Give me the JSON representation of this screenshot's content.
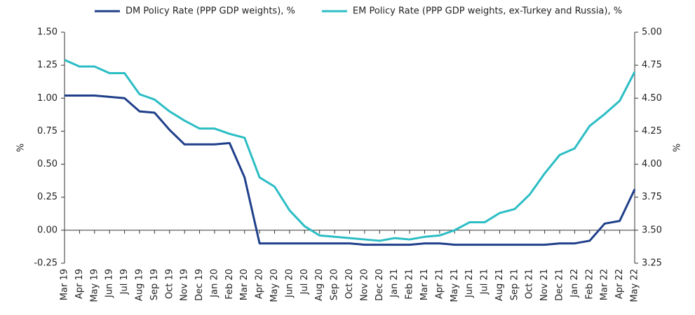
{
  "chart_data": {
    "type": "line",
    "categories": [
      "Mar 19",
      "Apr 19",
      "May 19",
      "Jun 19",
      "Jul 19",
      "Aug 19",
      "Sep 19",
      "Oct 19",
      "Nov 19",
      "Dec 19",
      "Jan 20",
      "Feb 20",
      "Mar 20",
      "Apr 20",
      "May 20",
      "Jun 20",
      "Jul 20",
      "Aug 20",
      "Sep 20",
      "Oct 20",
      "Nov 20",
      "Dec 20",
      "Jan 21",
      "Feb 21",
      "Mar 21",
      "Apr 21",
      "May 21",
      "Jun 21",
      "Jul 21",
      "Aug 21",
      "Sep 21",
      "Oct 21",
      "Nov 21",
      "Dec 21",
      "Jan 22",
      "Feb 22",
      "Mar 22",
      "Apr 22",
      "May 22"
    ],
    "series": [
      {
        "name": "DM Policy Rate (PPP GDP weights), %",
        "color": "#1f3f8a",
        "axis": "y",
        "values": [
          1.02,
          1.02,
          1.02,
          1.01,
          1.0,
          0.9,
          0.89,
          0.76,
          0.65,
          0.65,
          0.65,
          0.66,
          0.4,
          -0.1,
          -0.1,
          -0.1,
          -0.1,
          -0.1,
          -0.1,
          -0.1,
          -0.11,
          -0.11,
          -0.11,
          -0.11,
          -0.1,
          -0.1,
          -0.11,
          -0.11,
          -0.11,
          -0.11,
          -0.11,
          -0.11,
          -0.11,
          -0.1,
          -0.1,
          -0.08,
          0.05,
          0.07,
          0.31
        ]
      },
      {
        "name": "EM Policy Rate (PPP GDP weights, ex-Turkey and Russia), %",
        "color": "#2bbdc4",
        "axis": "y2",
        "values": [
          4.79,
          4.74,
          4.74,
          4.69,
          4.69,
          4.53,
          4.49,
          4.4,
          4.33,
          4.27,
          4.27,
          4.23,
          4.2,
          3.9,
          3.83,
          3.65,
          3.53,
          3.46,
          3.45,
          3.44,
          3.43,
          3.42,
          3.44,
          3.43,
          3.45,
          3.46,
          3.5,
          3.56,
          3.56,
          3.63,
          3.66,
          3.77,
          3.93,
          4.07,
          4.12,
          4.29,
          4.38,
          4.48,
          4.7
        ]
      }
    ],
    "ylabel": "%",
    "y2label": "%",
    "ylim": [
      -0.25,
      1.5
    ],
    "yticks": [
      {
        "value": 1.5,
        "label": "1.50"
      },
      1.25,
      {
        "value": 1,
        "label": "1.00"
      },
      0.75,
      {
        "value": 0.5,
        "label": "0.50"
      },
      0.25,
      {
        "value": 0,
        "label": "0.00"
      },
      -0.25
    ],
    "y2lim": [
      3.25,
      5
    ],
    "y2ticks": [
      {
        "value": 5,
        "label": "5.00"
      },
      4.75,
      {
        "value": 4.5,
        "label": "4.50"
      },
      4.25,
      {
        "value": 4,
        "label": "4.00"
      },
      3.75,
      {
        "value": 3.5,
        "label": "3.50"
      },
      3.25
    ],
    "legend": "top"
  }
}
